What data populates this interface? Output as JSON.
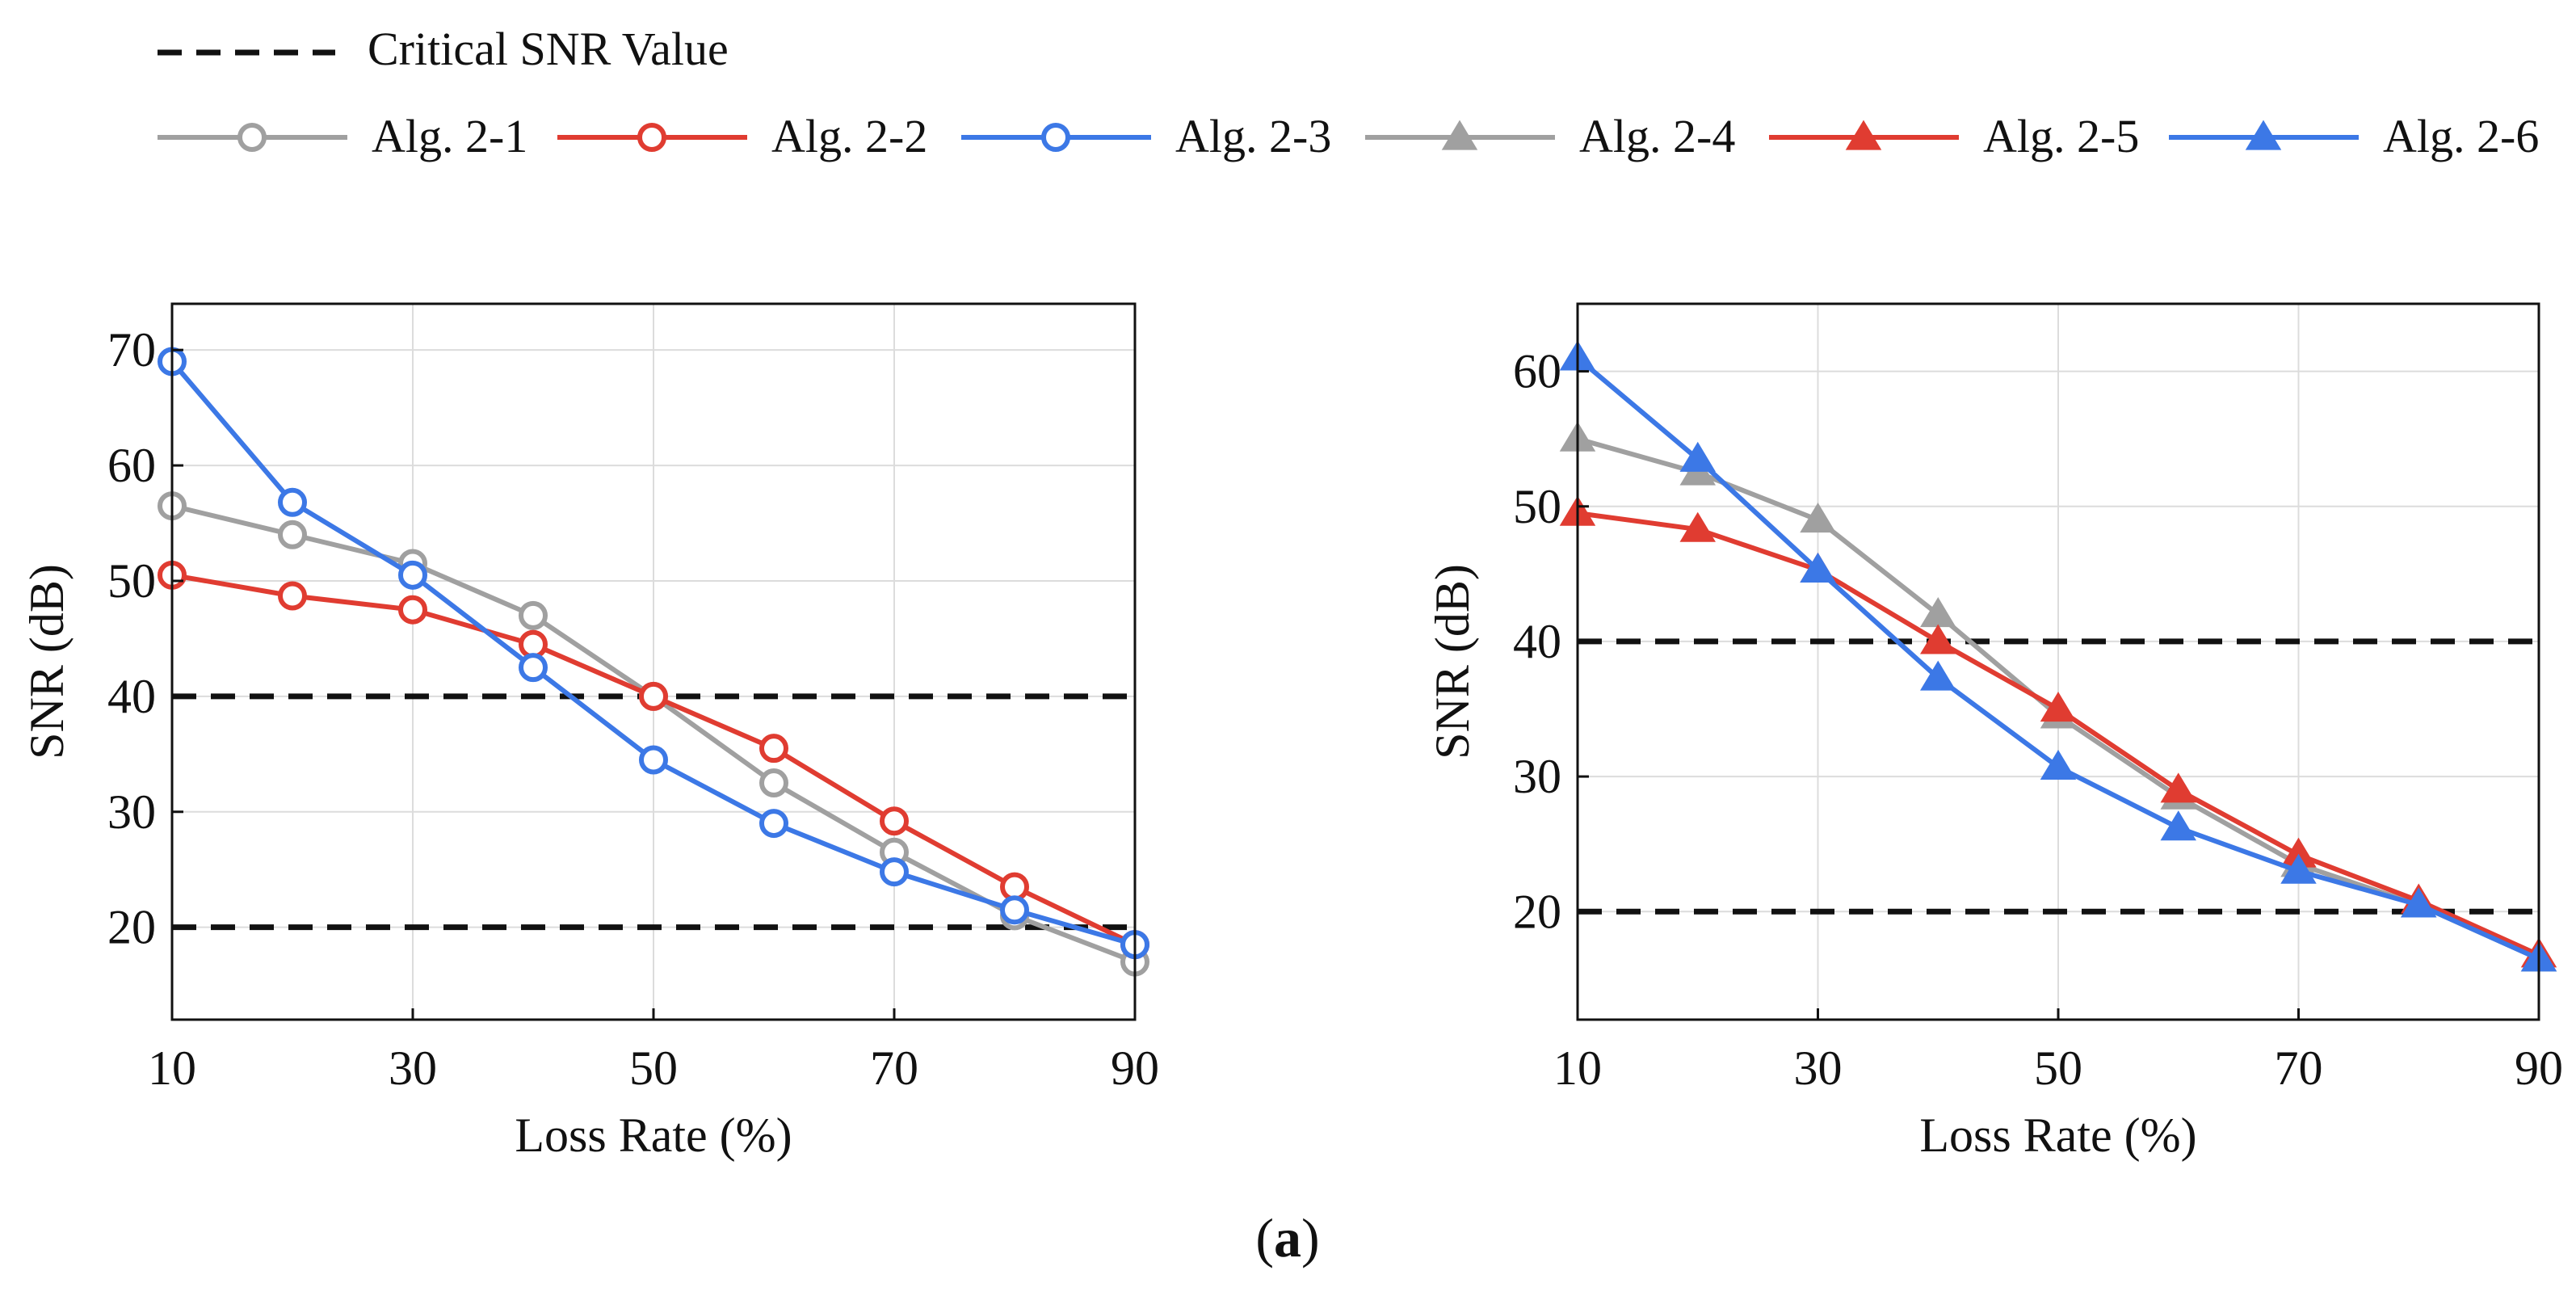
{
  "figure_label_paren_open": "(",
  "figure_label": "a",
  "figure_label_paren_close": ")",
  "legend": {
    "critical": "Critical SNR Value",
    "items": [
      {
        "label": "Alg. 2-1",
        "color": "#a0a0a0",
        "marker": "circle"
      },
      {
        "label": "Alg. 2-2",
        "color": "#e03c31",
        "marker": "circle"
      },
      {
        "label": "Alg. 2-3",
        "color": "#3c78e6",
        "marker": "circle"
      },
      {
        "label": "Alg. 2-4",
        "color": "#a0a0a0",
        "marker": "triangle"
      },
      {
        "label": "Alg. 2-5",
        "color": "#e03c31",
        "marker": "triangle"
      },
      {
        "label": "Alg. 2-6",
        "color": "#3c78e6",
        "marker": "triangle"
      }
    ]
  },
  "chart_data": [
    {
      "type": "line",
      "xlabel": "Loss Rate (%)",
      "ylabel": "SNR (dB)",
      "xlim": [
        10,
        90
      ],
      "ylim": [
        12,
        74
      ],
      "xticks": [
        10,
        30,
        50,
        70,
        90
      ],
      "yticks": [
        20,
        30,
        40,
        50,
        60,
        70
      ],
      "grid": true,
      "x": [
        10,
        20,
        30,
        40,
        50,
        60,
        70,
        80,
        90
      ],
      "critical_values": [
        40,
        20
      ],
      "series": [
        {
          "name": "Alg. 2-1",
          "color": "#a0a0a0",
          "marker": "circle",
          "values": [
            56.5,
            54,
            51.5,
            47,
            40,
            32.5,
            26.5,
            21,
            17
          ]
        },
        {
          "name": "Alg. 2-2",
          "color": "#e03c31",
          "marker": "circle",
          "values": [
            50.5,
            48.7,
            47.5,
            44.5,
            40,
            35.5,
            29.2,
            23.5,
            18.5
          ]
        },
        {
          "name": "Alg. 2-3",
          "color": "#3c78e6",
          "marker": "circle",
          "values": [
            69,
            56.8,
            50.5,
            42.5,
            34.5,
            29,
            24.8,
            21.5,
            18.5
          ]
        }
      ]
    },
    {
      "type": "line",
      "xlabel": "Loss Rate (%)",
      "ylabel": "SNR (dB)",
      "xlim": [
        10,
        90
      ],
      "ylim": [
        12,
        65
      ],
      "xticks": [
        10,
        30,
        50,
        70,
        90
      ],
      "yticks": [
        20,
        30,
        40,
        50,
        60
      ],
      "grid": true,
      "x": [
        10,
        20,
        30,
        40,
        50,
        60,
        70,
        80,
        90
      ],
      "critical_values": [
        40,
        20
      ],
      "series": [
        {
          "name": "Alg. 2-4",
          "color": "#a0a0a0",
          "marker": "triangle",
          "values": [
            55,
            52.5,
            49,
            42,
            34.5,
            28.5,
            23.5,
            20.5,
            16.5
          ]
        },
        {
          "name": "Alg. 2-5",
          "color": "#e03c31",
          "marker": "triangle",
          "values": [
            49.5,
            48.3,
            45.3,
            40,
            35,
            29,
            24.2,
            20.8,
            16.8
          ]
        },
        {
          "name": "Alg. 2-6",
          "color": "#3c78e6",
          "marker": "triangle",
          "values": [
            61,
            53.5,
            45.3,
            37.3,
            30.7,
            26.2,
            23,
            20.5,
            16.5
          ]
        }
      ]
    }
  ]
}
